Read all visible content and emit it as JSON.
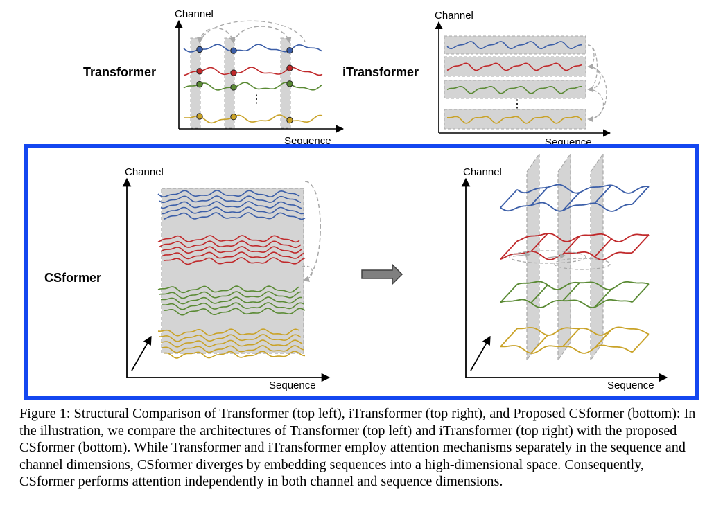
{
  "colors": {
    "blue": "#3b5ea8",
    "red": "#c0282a",
    "green": "#5a8a34",
    "gold": "#c9a227",
    "frame": "#1447f0",
    "shade": "#d4d4d4",
    "dash": "#a8a8a8"
  },
  "panels": {
    "transformer": {
      "title": "Transformer",
      "ylabel": "Channel",
      "xlabel": "Sequence",
      "ellipsis": "⋮"
    },
    "itransformer": {
      "title": "iTransformer",
      "ylabel": "Channel",
      "xlabel": "Sequence",
      "ellipsis": "⋮"
    },
    "csformer": {
      "title": "CSformer",
      "ylabel": "Channel",
      "xlabel": "Sequence"
    },
    "csformer_right": {
      "ylabel": "Channel",
      "xlabel": "Sequence"
    }
  },
  "caption": "Figure 1: Structural Comparison of Transformer (top left), iTransformer (top right), and Proposed CSformer (bottom): In the illustration, we compare the architectures of Transformer (top left) and iTransformer (top right) with the proposed CSformer (bottom). While Transformer and iTransformer employ attention mechanisms separately in the sequence and channel dimensions, CSformer diverges by embedding sequences into a high-dimensional space. Consequently, CSformer performs attention independently in both channel and sequence dimensions."
}
